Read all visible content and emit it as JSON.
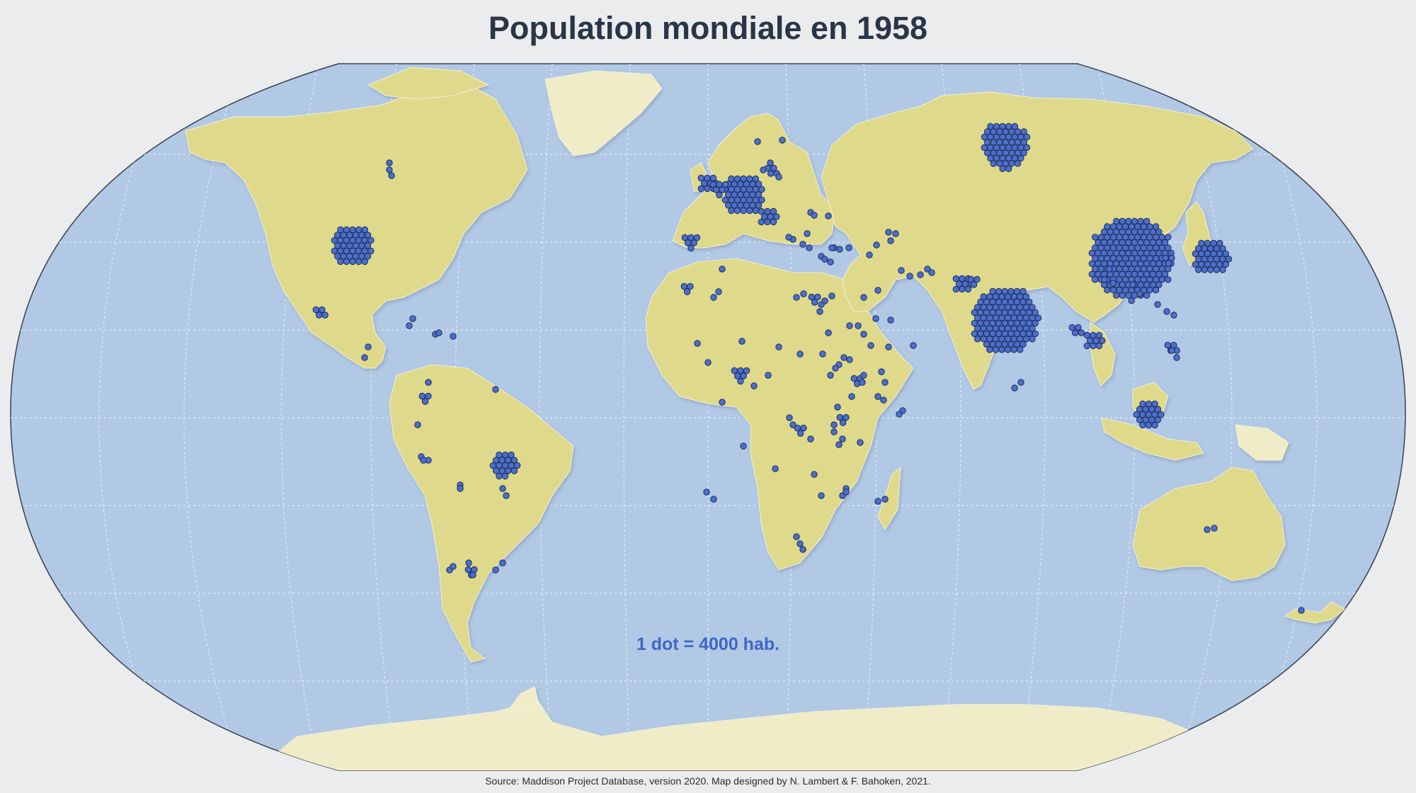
{
  "title": "Population mondiale en 1958",
  "legend": {
    "dot_value": "1 dot = 4000 hab."
  },
  "source": "Source: Maddison Project Database, version 2020. Map designed by N. Lambert & F. Bahoken, 2021.",
  "colors": {
    "background": "#ebecee",
    "ocean": "#b1c9e5",
    "land": "#dfd98b",
    "land_light": "#f0ecc8",
    "graticule": "#e8eef6",
    "dot_fill": "#4a6fcf",
    "dot_stroke": "#1e2a55",
    "title_text": "#2a3547",
    "legend_text": "#3f66c6"
  }
}
